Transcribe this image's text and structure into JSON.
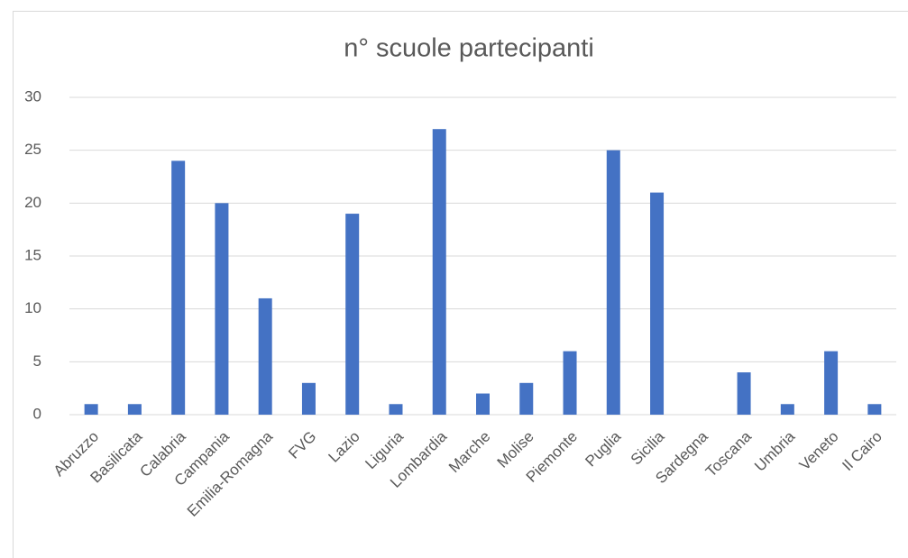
{
  "chart_data": {
    "type": "bar",
    "title": "n° scuole partecipanti",
    "categories": [
      "Abruzzo",
      "Basilicata",
      "Calabria",
      "Campania",
      "Emilia-Romagna",
      "FVG",
      "Lazio",
      "Liguria",
      "Lombardia",
      "Marche",
      "Molise",
      "Piemonte",
      "Puglia",
      "Sicilia",
      "Sardegna",
      "Toscana",
      "Umbria",
      "Veneto",
      "Il Cairo"
    ],
    "values": [
      1,
      1,
      24,
      20,
      11,
      3,
      19,
      1,
      27,
      2,
      3,
      6,
      25,
      21,
      0,
      4,
      1,
      6,
      1
    ],
    "color": "#4472c4",
    "ylim": [
      0,
      30
    ],
    "yticks": [
      0,
      5,
      10,
      15,
      20,
      25,
      30
    ],
    "grid": true
  }
}
